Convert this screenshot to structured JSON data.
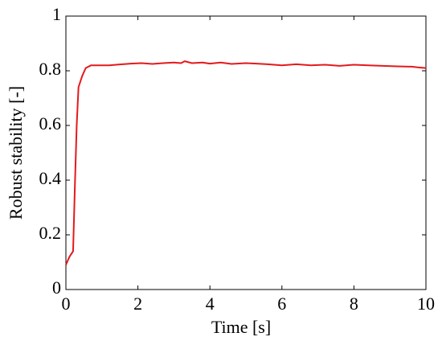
{
  "chart_data": {
    "type": "line",
    "x_label": "Time [s]",
    "y_label": "Robust stability [-]",
    "x": [
      0,
      0.1,
      0.2,
      0.25,
      0.3,
      0.35,
      0.45,
      0.55,
      0.7,
      0.9,
      1.2,
      1.5,
      1.8,
      2.1,
      2.4,
      2.7,
      3.0,
      3.2,
      3.3,
      3.5,
      3.8,
      4.0,
      4.3,
      4.6,
      5.0,
      5.3,
      5.6,
      6.0,
      6.4,
      6.8,
      7.2,
      7.6,
      8.0,
      8.4,
      8.8,
      9.2,
      9.6,
      9.8,
      10
    ],
    "series": [
      {
        "color": "#e31a1c",
        "values": [
          0.09,
          0.12,
          0.14,
          0.38,
          0.6,
          0.74,
          0.78,
          0.81,
          0.82,
          0.82,
          0.82,
          0.823,
          0.826,
          0.828,
          0.825,
          0.828,
          0.83,
          0.828,
          0.835,
          0.828,
          0.83,
          0.826,
          0.83,
          0.825,
          0.828,
          0.826,
          0.824,
          0.82,
          0.824,
          0.82,
          0.822,
          0.818,
          0.822,
          0.82,
          0.818,
          0.816,
          0.815,
          0.812,
          0.81
        ]
      }
    ],
    "xlim": [
      0,
      10
    ],
    "ylim": [
      0,
      1
    ],
    "xticks": [
      0,
      2,
      4,
      6,
      8,
      10
    ],
    "yticks": [
      0,
      0.2,
      0.4,
      0.6,
      0.8,
      1
    ]
  }
}
